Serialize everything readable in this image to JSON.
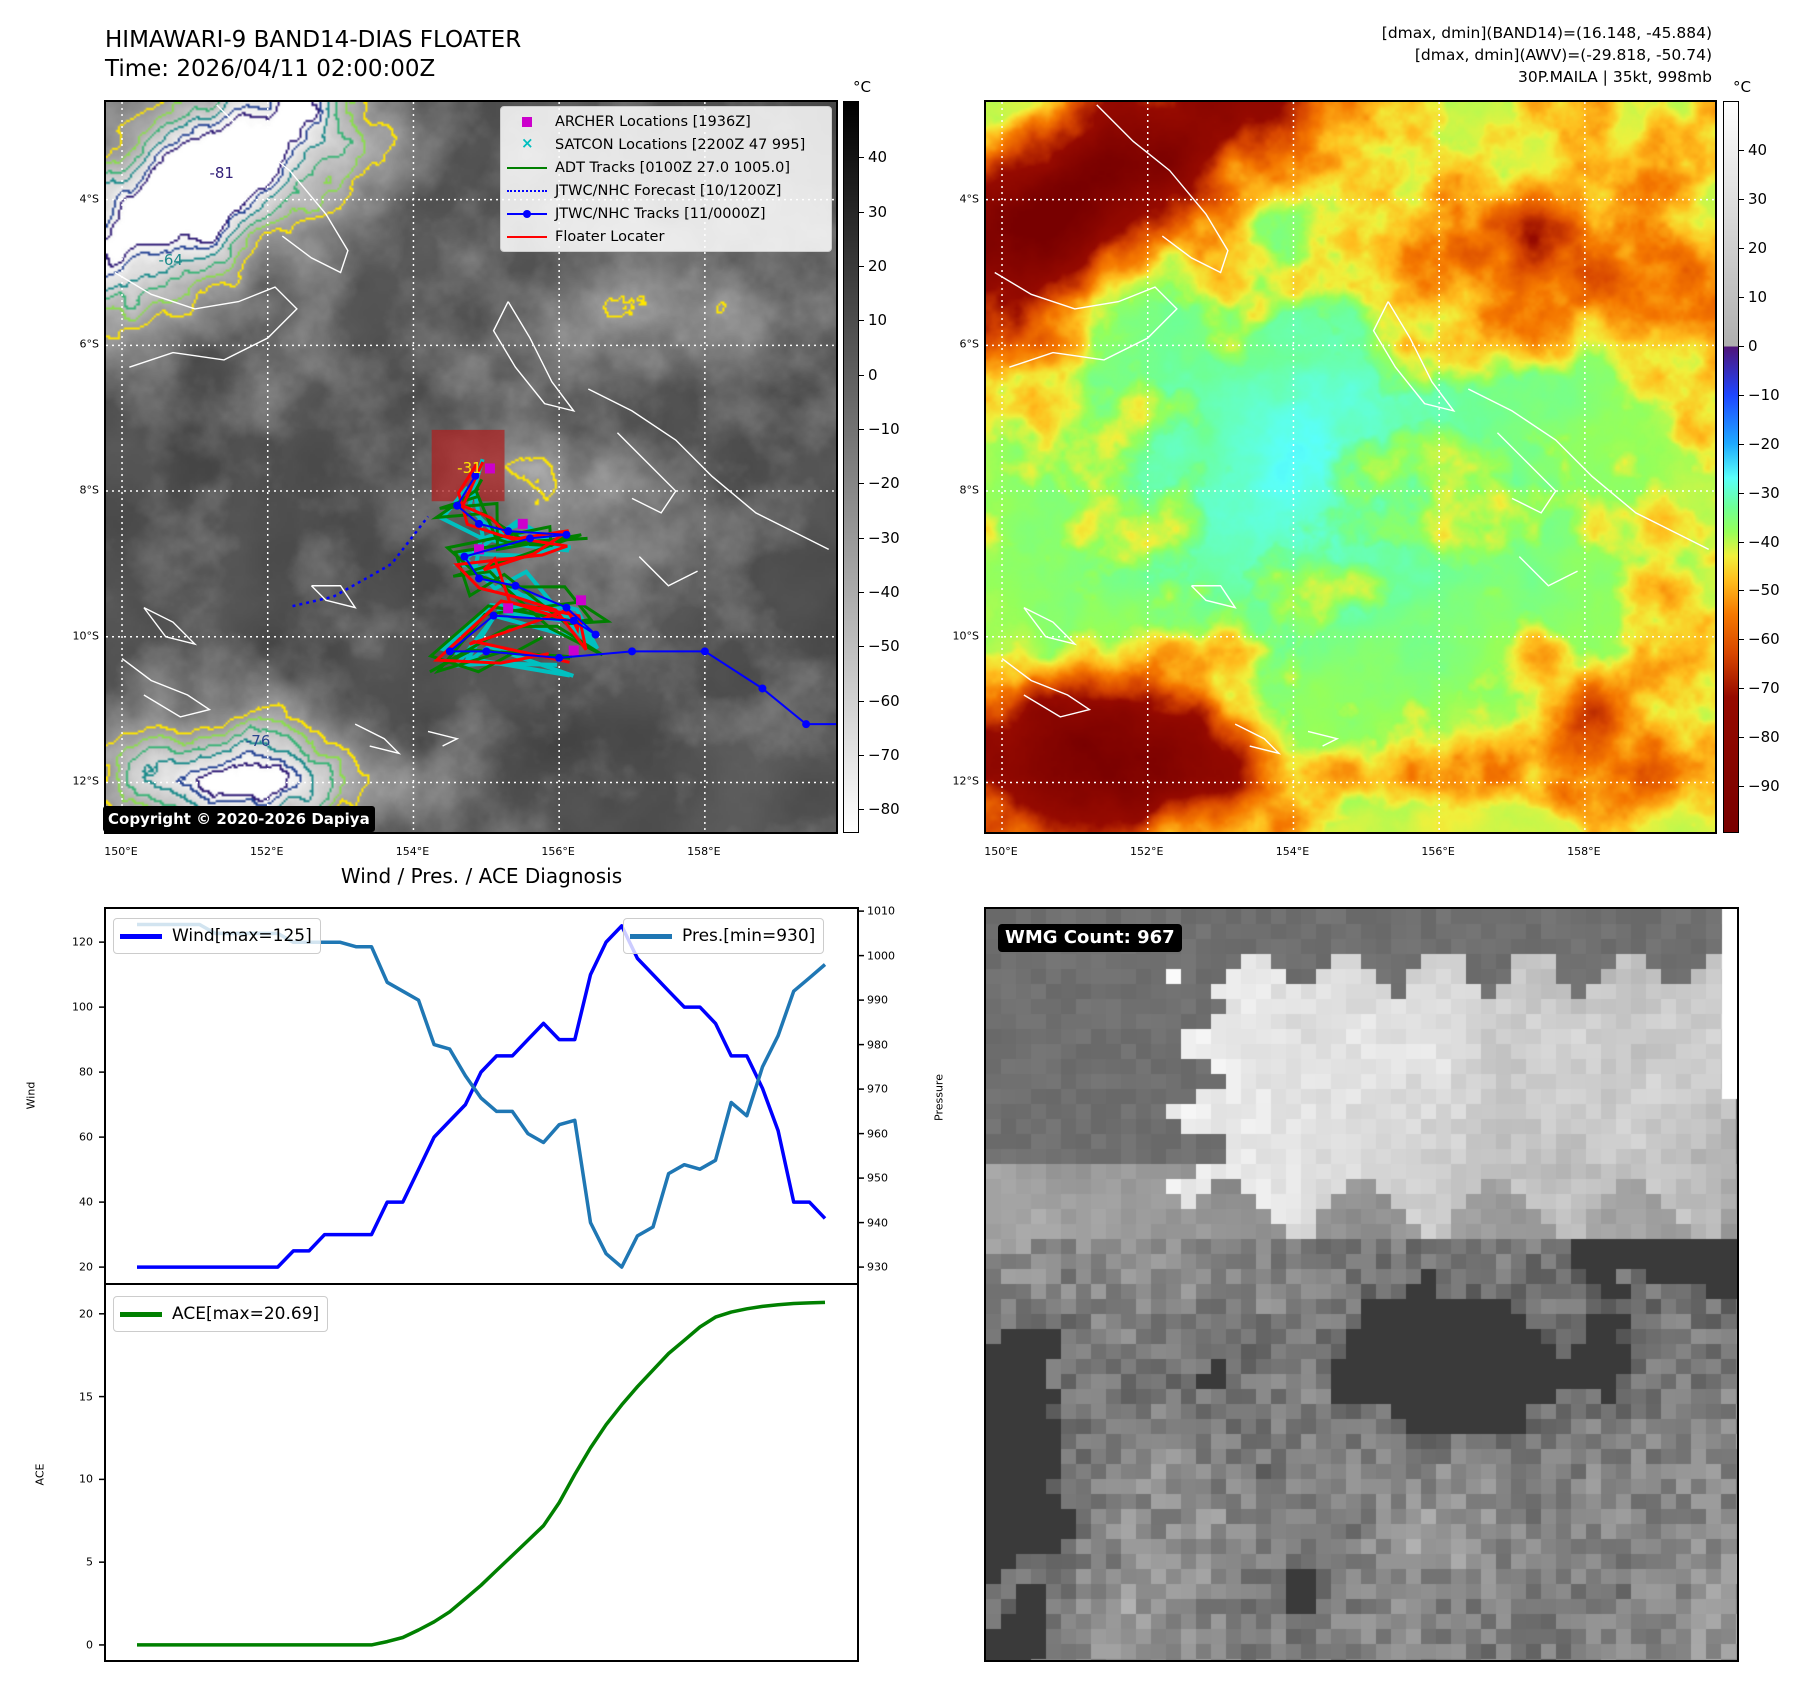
{
  "header": {
    "title_line1": "HIMAWARI-9 BAND14-DIAS FLOATER",
    "title_line2": "Time: 2026/04/11 02:00:00Z",
    "stats_line1": "[dmax, dmin](BAND14)=(16.148, -45.884)",
    "stats_line2": "[dmax, dmin](AWV)=(-29.818, -50.74)",
    "stats_line3": "30P.MAILA | 35kt, 998mb"
  },
  "ir_map": {
    "unit": "°C",
    "colorbar_ticks": [
      "40",
      "30",
      "20",
      "10",
      "0",
      "−10",
      "−20",
      "−30",
      "−40",
      "−50",
      "−60",
      "−70",
      "−80"
    ],
    "colorbar_values": [
      40,
      30,
      20,
      10,
      0,
      -10,
      -20,
      -30,
      -40,
      -50,
      -60,
      -70,
      -80
    ],
    "colorbar_range": [
      -84.4,
      50.4
    ],
    "lat_labels": [
      "4°S",
      "6°S",
      "8°S",
      "10°S",
      "12°S"
    ],
    "lat_values": [
      4,
      6,
      8,
      10,
      12
    ],
    "lon_labels": [
      "150°E",
      "152°E",
      "154°E",
      "156°E",
      "158°E"
    ],
    "lon_values": [
      150,
      152,
      154,
      156,
      158
    ],
    "lon_range": [
      149.78,
      159.8
    ],
    "lat_range": [
      2.66,
      12.68
    ],
    "contour_labels": [
      "-31",
      "-81",
      "-64",
      "-76"
    ],
    "copyright": "Copyright © 2020-2026 Dapiya",
    "legend": [
      {
        "label": "ARCHER Locations [1936Z]",
        "color": "#cc00cc",
        "symbol": "square"
      },
      {
        "label": "SATCON Locations [2200Z 47 995]",
        "color": "#00bfbf",
        "symbol": "x"
      },
      {
        "label": "ADT Tracks [0100Z 27.0 1005.0]",
        "color": "#008000",
        "symbol": "line"
      },
      {
        "label": "JTWC/NHC Forecast [10/1200Z]",
        "color": "#0000ff",
        "symbol": "dotted"
      },
      {
        "label": "JTWC/NHC Tracks [11/0000Z]",
        "color": "#0000ff",
        "symbol": "line-dot"
      },
      {
        "label": "Floater Locater",
        "color": "#ff0000",
        "symbol": "line"
      }
    ],
    "jtwc_track": [
      [
        159.9,
        11.2
      ],
      [
        159.39,
        11.2
      ],
      [
        158.79,
        10.71
      ],
      [
        158.0,
        10.2
      ],
      [
        157.0,
        10.2
      ],
      [
        156.0,
        10.29
      ],
      [
        155.0,
        10.2
      ],
      [
        154.5,
        10.2
      ],
      [
        155.1,
        9.71
      ],
      [
        156.2,
        9.78
      ],
      [
        156.5,
        9.97
      ],
      [
        156.1,
        9.6
      ],
      [
        155.4,
        9.3
      ],
      [
        154.9,
        9.2
      ],
      [
        154.7,
        8.9
      ],
      [
        155.6,
        8.65
      ],
      [
        156.1,
        8.6
      ],
      [
        155.3,
        8.55
      ],
      [
        154.9,
        8.45
      ],
      [
        154.6,
        8.2
      ],
      [
        154.85,
        7.79
      ]
    ],
    "jtwc_forecast": [
      [
        152.34,
        9.58
      ],
      [
        152.9,
        9.45
      ],
      [
        153.35,
        9.2
      ],
      [
        153.7,
        9.0
      ],
      [
        154.0,
        8.61
      ],
      [
        154.2,
        8.35
      ]
    ],
    "floater_box": {
      "lon": [
        154.25,
        155.25
      ],
      "lat": [
        7.16,
        8.14
      ]
    }
  },
  "awv_map": {
    "unit": "°C",
    "colorbar_ticks": [
      "40",
      "30",
      "20",
      "10",
      "0",
      "−10",
      "−20",
      "−30",
      "−40",
      "−50",
      "−60",
      "−70",
      "−80",
      "−90"
    ],
    "colorbar_values": [
      40,
      30,
      20,
      10,
      0,
      -10,
      -20,
      -30,
      -40,
      -50,
      -60,
      -70,
      -80,
      -90
    ],
    "colorbar_range": [
      -99.6,
      50.1
    ],
    "lat_labels": [
      "4°S",
      "6°S",
      "8°S",
      "10°S",
      "12°S"
    ],
    "lon_labels": [
      "150°E",
      "152°E",
      "154°E",
      "156°E",
      "158°E"
    ]
  },
  "wmg": {
    "label": "WMG Count: 967"
  },
  "chart_data": [
    {
      "type": "line",
      "title": "Wind / Pres. / ACE Diagnosis",
      "ylabel": "Wind",
      "ylabel_right": "Pressure",
      "ylim": [
        14.8,
        130.5
      ],
      "ylim_right": [
        926.2,
        1010.7
      ],
      "yticks": [
        20,
        40,
        60,
        80,
        100,
        120
      ],
      "yticks_right": [
        930,
        940,
        950,
        960,
        970,
        980,
        990,
        1000,
        1010
      ],
      "series": [
        {
          "name": "Wind[max=125]",
          "axis": "left",
          "color": "#0000ff",
          "values": [
            20,
            20,
            20,
            20,
            20,
            20,
            20,
            20,
            20,
            20,
            25,
            25,
            30,
            30,
            30,
            30,
            40,
            40,
            50,
            60,
            65,
            70,
            80,
            85,
            85,
            90,
            95,
            90,
            90,
            110,
            120,
            125,
            115,
            110,
            105,
            100,
            100,
            95,
            85,
            85,
            75,
            62,
            40,
            40,
            35
          ]
        },
        {
          "name": "Pres.[min=930]",
          "axis": "right",
          "color": "#1f77b4",
          "values": [
            1007,
            1007,
            1007,
            1007,
            1007,
            1005,
            1005,
            1005,
            1005,
            1005,
            1003,
            1003,
            1003,
            1003,
            1002,
            1002,
            994,
            992,
            990,
            980,
            979,
            973,
            968,
            965,
            965,
            960,
            958,
            962,
            963,
            940,
            933,
            930,
            937,
            939,
            951,
            953,
            952,
            954,
            967,
            964,
            975,
            982,
            992,
            995,
            998
          ]
        }
      ]
    },
    {
      "type": "line",
      "ylabel": "ACE",
      "ylim": [
        -0.97,
        21.8
      ],
      "yticks": [
        0,
        5,
        10,
        15,
        20
      ],
      "series": [
        {
          "name": "ACE[max=20.69]",
          "color": "#008000",
          "values": [
            0,
            0,
            0,
            0,
            0,
            0,
            0,
            0,
            0,
            0,
            0,
            0,
            0,
            0,
            0,
            0,
            0.2,
            0.45,
            0.9,
            1.4,
            2.0,
            2.8,
            3.6,
            4.5,
            5.4,
            6.3,
            7.2,
            8.6,
            10.3,
            11.9,
            13.3,
            14.5,
            15.6,
            16.6,
            17.6,
            18.4,
            19.2,
            19.8,
            20.1,
            20.3,
            20.45,
            20.55,
            20.62,
            20.66,
            20.69
          ]
        }
      ]
    }
  ]
}
